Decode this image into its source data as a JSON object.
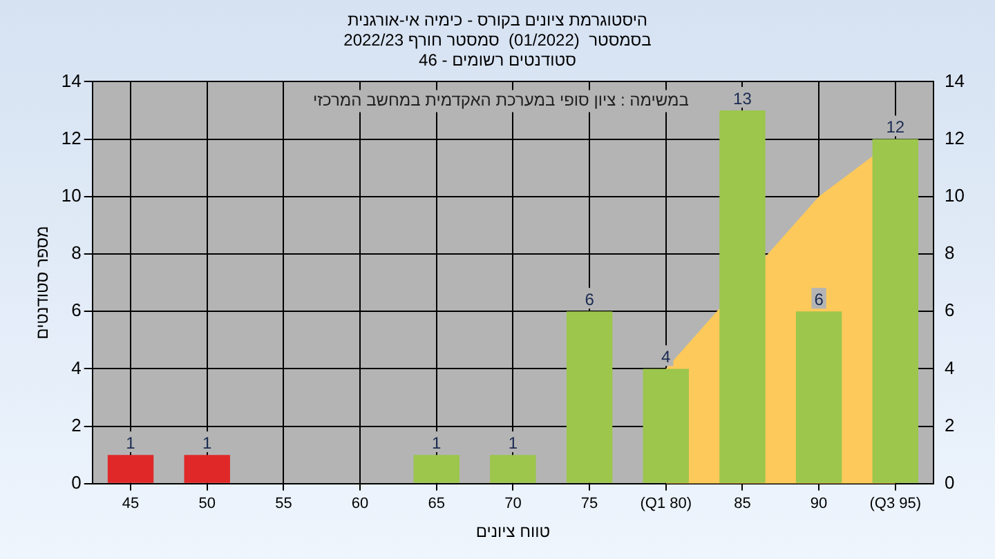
{
  "chart_data": {
    "type": "bar",
    "title": "היסטוגרמת ציונים בקורס - כימיה אי-אורגנית",
    "subtitle": "בסמסטר  (01/2022)  סמסטר חורף 2022/23\nסטודנטים רשומים - 46",
    "xlabel": "טווח ציונים",
    "ylabel": "מספר סטודנטים",
    "annotations": [
      "במשימה : ציון סופי במערכת האקדמית במחשב המרכזי"
    ],
    "categories": [
      "45",
      "50",
      "55",
      "60",
      "65",
      "70",
      "75",
      "(Q1 80)",
      "85",
      "90",
      "(Q3 95)"
    ],
    "series": [
      {
        "type": "area",
        "color": "#fdc95a",
        "values": [
          null,
          null,
          null,
          null,
          null,
          null,
          null,
          4,
          null,
          10,
          12
        ]
      },
      {
        "colors": [
          "#e02828",
          "#e02828",
          "#9cc64c",
          "#9cc64c",
          "#9cc64c",
          "#9cc64c",
          "#9cc64c",
          "#9cc64c",
          "#9cc64c",
          "#9cc64c",
          "#9cc64c"
        ],
        "values": [
          1,
          1,
          0,
          0,
          1,
          1,
          6,
          4,
          13,
          6,
          12
        ],
        "value_labels": [
          "1",
          "1",
          null,
          null,
          "1",
          "1",
          "6",
          "4",
          "13",
          "6",
          "12"
        ]
      }
    ],
    "ylim": [
      0,
      14
    ],
    "yticks": [
      0,
      2,
      4,
      6,
      8,
      10,
      12,
      14
    ],
    "y2lim": [
      0,
      14
    ],
    "y2ticks": [
      0,
      2,
      4,
      6,
      8,
      10,
      12,
      14
    ],
    "grid": true,
    "legend": false
  }
}
